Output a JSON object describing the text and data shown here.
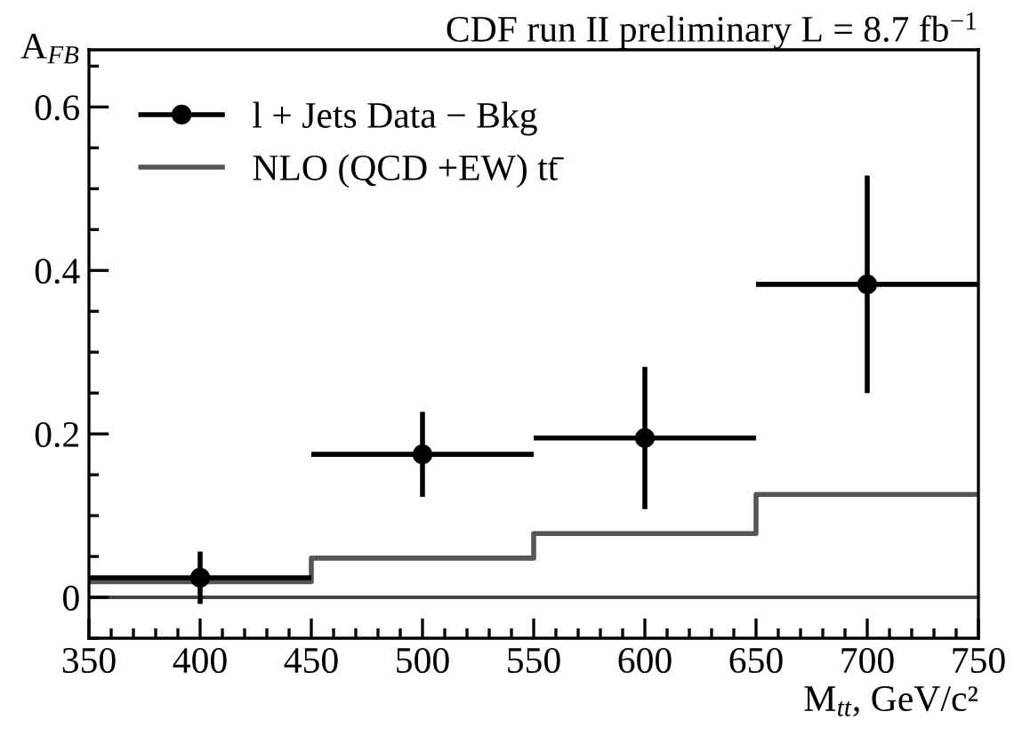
{
  "chart_data": {
    "type": "scatter",
    "title": "CDF run II preliminary L = 8.7 fb$^{−1}$",
    "xlabel": "M$_{tt}$, GeV/c²",
    "ylabel": "A$_{FB}$",
    "xlim": [
      350,
      750
    ],
    "ylim": [
      -0.05,
      0.67
    ],
    "xticks": [
      350,
      400,
      450,
      500,
      550,
      600,
      650,
      700,
      750
    ],
    "yticks": [
      0,
      0.2,
      0.4,
      0.6
    ],
    "series": [
      {
        "name": "l + Jets Data − Bkg",
        "color": "#000000",
        "x": [
          400,
          500,
          600,
          700
        ],
        "values": [
          0.024,
          0.175,
          0.195,
          0.383
        ],
        "errors": [
          0.032,
          0.052,
          0.087,
          0.133
        ],
        "xerrors": [
          50,
          50,
          50,
          50
        ],
        "marker": "circle"
      },
      {
        "name": "NLO (QCD +EW) tt̄",
        "type": "step",
        "color": "#555555",
        "x": [
          350,
          450,
          550,
          650,
          750
        ],
        "values": [
          0.019,
          0.048,
          0.078,
          0.126,
          0.126
        ]
      }
    ],
    "ref_lines": [
      {
        "axis": "y",
        "value": 0,
        "color": "#444444"
      }
    ],
    "legend": "top left",
    "grid": false
  }
}
